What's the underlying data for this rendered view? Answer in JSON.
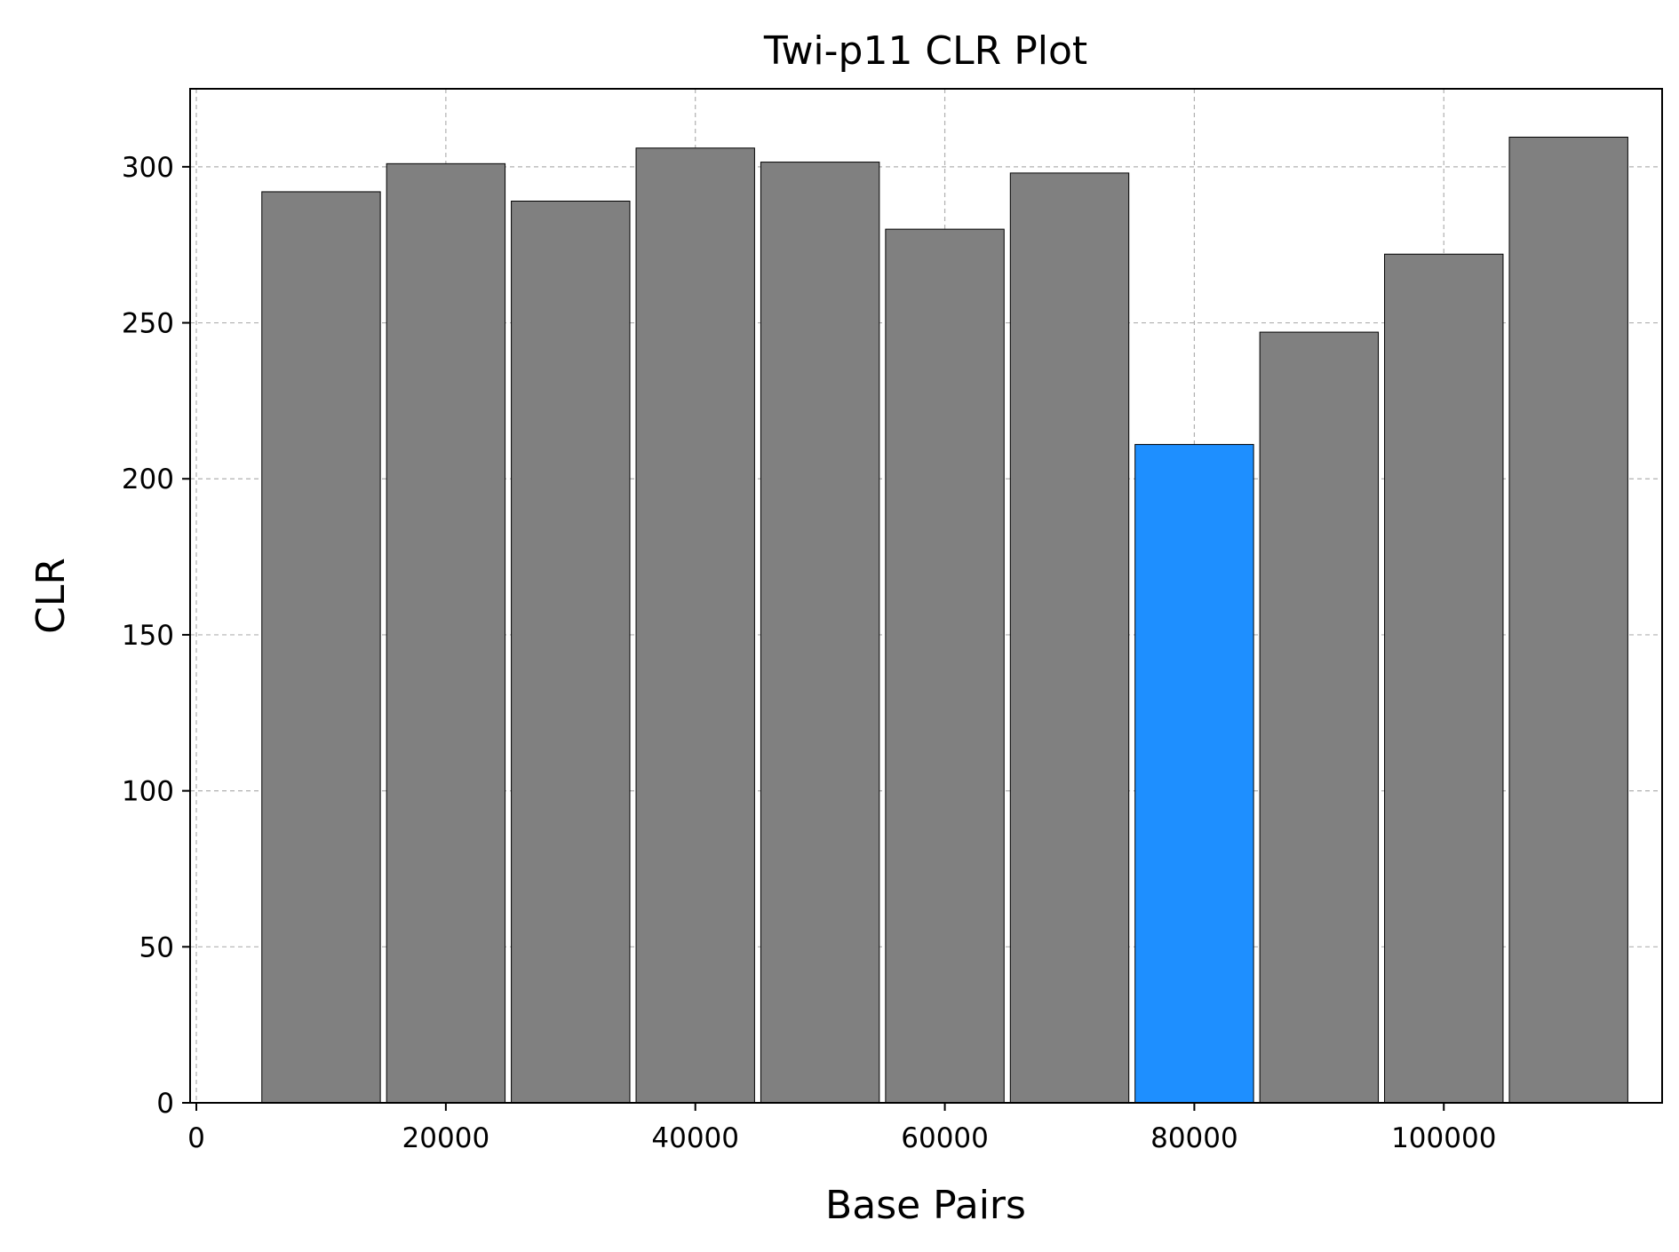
{
  "chart_data": {
    "type": "bar",
    "title": "Twi-p11 CLR Plot",
    "xlabel": "Base Pairs",
    "ylabel": "CLR",
    "xlim": [
      -500,
      117500
    ],
    "ylim": [
      0,
      325
    ],
    "xticks": [
      0,
      20000,
      40000,
      60000,
      80000,
      100000
    ],
    "yticks": [
      0,
      50,
      100,
      150,
      200,
      250,
      300
    ],
    "grid": true,
    "bar_width": 9500,
    "bars": [
      {
        "x": 10000,
        "value": 292,
        "color": "#808080"
      },
      {
        "x": 20000,
        "value": 301,
        "color": "#808080"
      },
      {
        "x": 30000,
        "value": 289,
        "color": "#808080"
      },
      {
        "x": 40000,
        "value": 306,
        "color": "#808080"
      },
      {
        "x": 50000,
        "value": 301.5,
        "color": "#808080"
      },
      {
        "x": 60000,
        "value": 280,
        "color": "#808080"
      },
      {
        "x": 70000,
        "value": 298,
        "color": "#808080"
      },
      {
        "x": 80000,
        "value": 211,
        "color": "#1e8fff"
      },
      {
        "x": 90000,
        "value": 247,
        "color": "#808080"
      },
      {
        "x": 100000,
        "value": 272,
        "color": "#808080"
      },
      {
        "x": 110000,
        "value": 309.5,
        "color": "#808080"
      }
    ]
  }
}
